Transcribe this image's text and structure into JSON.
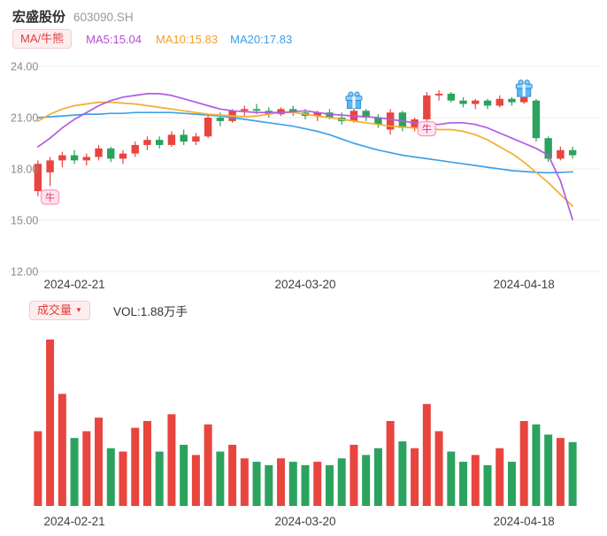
{
  "header": {
    "title": "宏盛股份",
    "code": "603090.SH"
  },
  "legend": {
    "selector_label": "MA/牛熊",
    "ma5_label": "MA5:15.04",
    "ma10_label": "MA10:15.83",
    "ma20_label": "MA20:17.83"
  },
  "volume_header": {
    "selector_label": "成交量",
    "dropdown_icon": "▼",
    "vol_label": "VOL:1.88万手"
  },
  "chart_data": {
    "type": "candlestick+volume",
    "title": "宏盛股份 603090.SH",
    "ylim": [
      12,
      24
    ],
    "grid": true,
    "y_ticks": [
      "24.00",
      "21.00",
      "18.00",
      "15.00",
      "12.00"
    ],
    "y_tick_values": [
      24,
      21,
      18,
      15,
      12
    ],
    "x_labels": [
      {
        "text": "2024-02-21",
        "index": 3
      },
      {
        "text": "2024-03-20",
        "index": 22
      },
      {
        "text": "2024-04-18",
        "index": 40
      }
    ],
    "up_color": "#e8453f",
    "down_color": "#2ba35e",
    "grid_color": "#ededed",
    "y_label_color": "#8b8b8b",
    "x_label_color": "#3f3f3f",
    "candle_format": [
      "open",
      "high",
      "low",
      "close",
      "volume_wanshou"
    ],
    "latest_volume_label": "VOL:1.88万手",
    "candles": [
      [
        16.7,
        18.5,
        16.4,
        18.3,
        2.2
      ],
      [
        17.8,
        18.7,
        17.0,
        18.5,
        4.9
      ],
      [
        18.5,
        19.0,
        18.1,
        18.8,
        3.3
      ],
      [
        18.8,
        19.1,
        18.3,
        18.5,
        2.0
      ],
      [
        18.5,
        18.9,
        18.2,
        18.7,
        2.2
      ],
      [
        18.7,
        19.4,
        18.5,
        19.2,
        2.6
      ],
      [
        19.2,
        19.3,
        18.4,
        18.6,
        1.7
      ],
      [
        18.6,
        19.1,
        18.3,
        18.9,
        1.6
      ],
      [
        18.9,
        19.6,
        18.7,
        19.4,
        2.3
      ],
      [
        19.4,
        19.9,
        19.1,
        19.7,
        2.5
      ],
      [
        19.7,
        19.9,
        19.2,
        19.4,
        1.6
      ],
      [
        19.4,
        20.2,
        19.3,
        20.0,
        2.7
      ],
      [
        20.0,
        20.3,
        19.4,
        19.6,
        1.8
      ],
      [
        19.6,
        20.1,
        19.4,
        19.9,
        1.5
      ],
      [
        19.9,
        21.2,
        19.8,
        21.0,
        2.4
      ],
      [
        21.0,
        21.3,
        20.5,
        20.8,
        1.6
      ],
      [
        20.8,
        21.5,
        20.7,
        21.4,
        1.8
      ],
      [
        21.4,
        21.7,
        21.1,
        21.5,
        1.4
      ],
      [
        21.5,
        21.8,
        21.2,
        21.4,
        1.3
      ],
      [
        21.4,
        21.6,
        21.0,
        21.2,
        1.2
      ],
      [
        21.2,
        21.6,
        21.1,
        21.5,
        1.4
      ],
      [
        21.5,
        21.7,
        21.1,
        21.3,
        1.3
      ],
      [
        21.3,
        21.5,
        20.9,
        21.1,
        1.2
      ],
      [
        21.1,
        21.4,
        20.8,
        21.3,
        1.3
      ],
      [
        21.3,
        21.5,
        20.9,
        21.0,
        1.2
      ],
      [
        21.0,
        21.3,
        20.6,
        20.8,
        1.4
      ],
      [
        20.8,
        21.6,
        20.7,
        21.4,
        1.8
      ],
      [
        21.4,
        21.5,
        20.8,
        21.0,
        1.5
      ],
      [
        21.0,
        21.2,
        20.4,
        20.6,
        1.7
      ],
      [
        20.3,
        21.5,
        20.0,
        21.3,
        2.5
      ],
      [
        21.3,
        21.4,
        20.2,
        20.4,
        1.9
      ],
      [
        20.4,
        21.0,
        20.2,
        20.9,
        1.7
      ],
      [
        20.9,
        22.5,
        20.8,
        22.3,
        3.0
      ],
      [
        22.3,
        22.6,
        22.0,
        22.4,
        2.2
      ],
      [
        22.4,
        22.5,
        21.9,
        22.0,
        1.6
      ],
      [
        22.0,
        22.2,
        21.6,
        21.8,
        1.3
      ],
      [
        21.8,
        22.1,
        21.5,
        22.0,
        1.5
      ],
      [
        22.0,
        22.1,
        21.5,
        21.7,
        1.2
      ],
      [
        21.7,
        22.3,
        21.6,
        22.1,
        1.7
      ],
      [
        22.1,
        22.2,
        21.7,
        21.9,
        1.3
      ],
      [
        21.9,
        22.4,
        21.8,
        22.2,
        2.5
      ],
      [
        22.0,
        22.1,
        19.6,
        19.8,
        2.4
      ],
      [
        19.8,
        19.9,
        18.4,
        18.6,
        2.1
      ],
      [
        18.6,
        19.3,
        18.5,
        19.1,
        2.0
      ],
      [
        19.1,
        19.3,
        18.6,
        18.8,
        1.88
      ]
    ],
    "ma_series": [
      {
        "name": "MA20",
        "color": "#41a1e8",
        "latest": 17.83,
        "values": [
          21.0,
          21.05,
          21.1,
          21.15,
          21.2,
          21.2,
          21.25,
          21.25,
          21.3,
          21.3,
          21.3,
          21.3,
          21.25,
          21.2,
          21.15,
          21.1,
          21.0,
          20.9,
          20.8,
          20.7,
          20.6,
          20.5,
          20.35,
          20.2,
          20.0,
          19.75,
          19.5,
          19.3,
          19.1,
          18.95,
          18.8,
          18.7,
          18.6,
          18.5,
          18.4,
          18.3,
          18.2,
          18.1,
          18.0,
          17.9,
          17.85,
          17.8,
          17.78,
          17.8,
          17.83
        ]
      },
      {
        "name": "MA10",
        "color": "#f2ae33",
        "latest": 15.83,
        "values": [
          20.8,
          21.2,
          21.5,
          21.7,
          21.8,
          21.9,
          21.9,
          21.85,
          21.8,
          21.7,
          21.6,
          21.5,
          21.4,
          21.3,
          21.2,
          21.15,
          21.1,
          21.05,
          21.1,
          21.2,
          21.3,
          21.3,
          21.2,
          21.1,
          21.0,
          20.9,
          20.8,
          20.7,
          20.6,
          20.5,
          20.45,
          20.4,
          20.35,
          20.3,
          20.3,
          20.2,
          20.0,
          19.7,
          19.3,
          18.9,
          18.4,
          17.8,
          17.2,
          16.5,
          15.83
        ]
      },
      {
        "name": "MA5",
        "color": "#b05ce0",
        "latest": 15.04,
        "values": [
          19.3,
          19.8,
          20.4,
          20.9,
          21.3,
          21.7,
          22.0,
          22.2,
          22.3,
          22.4,
          22.4,
          22.3,
          22.1,
          21.9,
          21.7,
          21.5,
          21.4,
          21.35,
          21.3,
          21.3,
          21.3,
          21.35,
          21.4,
          21.3,
          21.2,
          21.15,
          21.1,
          21.05,
          21.0,
          20.9,
          20.8,
          20.7,
          20.65,
          20.6,
          20.7,
          20.7,
          20.6,
          20.4,
          20.1,
          19.8,
          19.5,
          19.2,
          18.8,
          17.3,
          15.04
        ]
      }
    ],
    "markers": [
      {
        "type": "bull-badge",
        "label": "牛",
        "index": 1,
        "price": 16.35
      },
      {
        "type": "gift-icon",
        "label": "",
        "index": 26,
        "price": 21.95
      },
      {
        "type": "bull-badge",
        "label": "牛",
        "index": 32,
        "price": 20.35
      },
      {
        "type": "gift-icon",
        "label": "",
        "index": 40,
        "price": 22.65
      }
    ],
    "marker_colors": {
      "bull_bg": "#ffe3ee",
      "bull_border": "#ff85b3",
      "bull_text": "#ea2e6e",
      "gift_body": "#5ab8f2",
      "gift_lid": "#8fd0f7",
      "gift_outline": "#2e8fd2",
      "gift_ribbon": "#eaf7ff"
    }
  }
}
